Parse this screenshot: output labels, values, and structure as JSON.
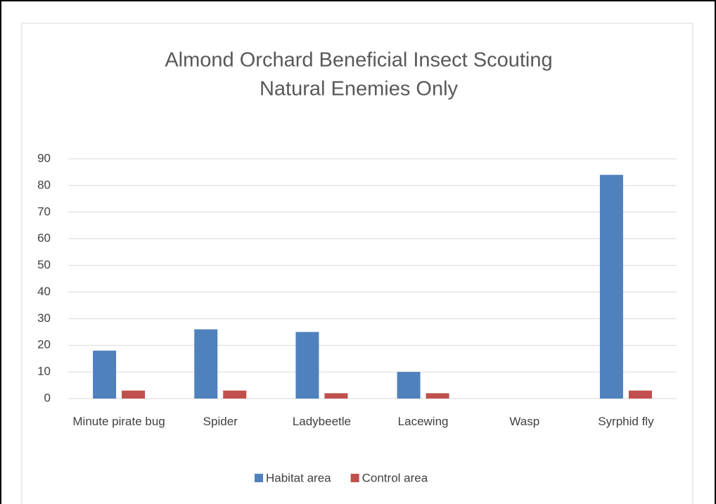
{
  "chart_data": {
    "type": "bar",
    "title": [
      "Almond Orchard Beneficial Insect Scouting",
      "Natural Enemies Only"
    ],
    "categories": [
      "Minute pirate bug",
      "Spider",
      "Ladybeetle",
      "Lacewing",
      "Wasp",
      "Syrphid fly"
    ],
    "series": [
      {
        "name": "Habitat area",
        "color": "#4f81bd",
        "values": [
          18,
          26,
          25,
          10,
          0,
          84
        ]
      },
      {
        "name": "Control area",
        "color": "#c0504d",
        "values": [
          3,
          3,
          2,
          2,
          0,
          3
        ]
      }
    ],
    "ylim": [
      0,
      90
    ],
    "yticks": [
      0,
      10,
      20,
      30,
      40,
      50,
      60,
      70,
      80,
      90
    ],
    "grid": true,
    "legend": "bottom"
  }
}
